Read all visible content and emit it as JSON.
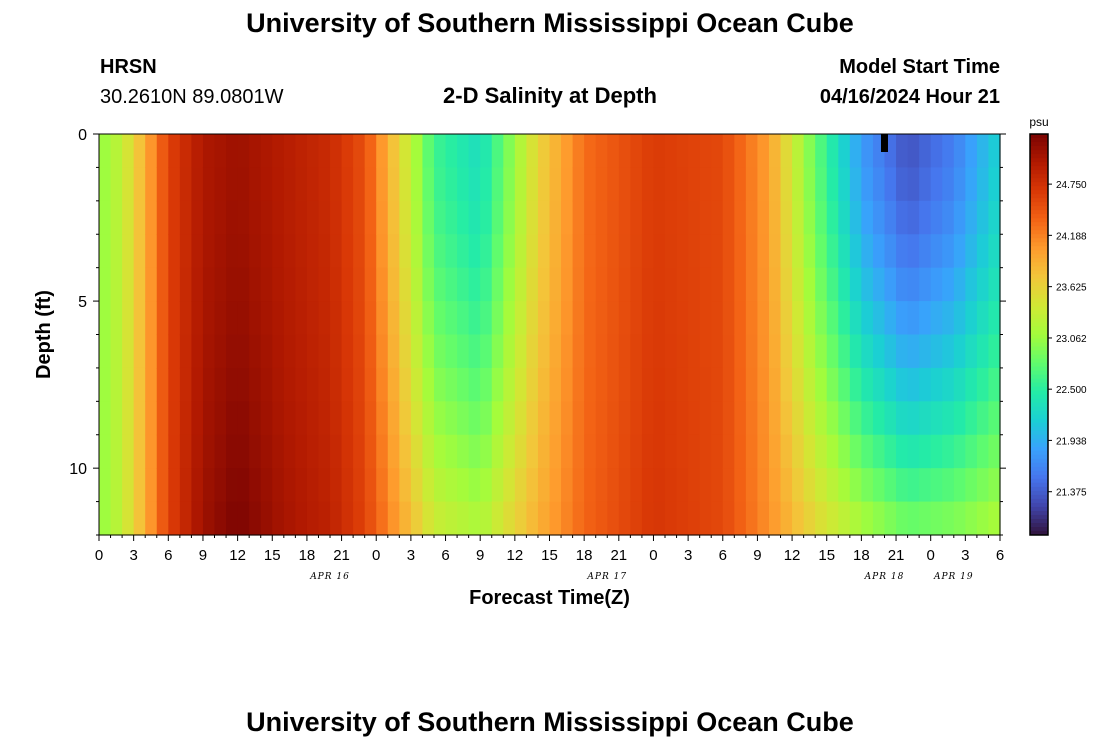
{
  "header": {
    "title": "University of Southern Mississippi Ocean Cube",
    "station_id": "HRSN",
    "station_coords": "30.2610N  89.0801W",
    "chart_title": "2-D Salinity at Depth",
    "start_label": "Model Start Time",
    "start_value": "04/16/2024 Hour 21"
  },
  "footer": {
    "title": "University of Southern Mississippi Ocean Cube"
  },
  "chart_data": {
    "type": "heatmap",
    "title": "2-D Salinity at Depth",
    "xlabel": "Forecast Time(Z)",
    "ylabel": "Depth (ft)",
    "x_tick_labels": [
      "0",
      "3",
      "6",
      "9",
      "12",
      "15",
      "18",
      "21",
      "0",
      "3",
      "6",
      "9",
      "12",
      "15",
      "18",
      "21",
      "0",
      "3",
      "6",
      "9",
      "12",
      "15",
      "18",
      "21",
      "0",
      "3",
      "6"
    ],
    "date_labels": [
      "APR 16",
      "APR 17",
      "APR 18",
      "APR 19"
    ],
    "x_range_hours_from_apr16_00z": [
      0,
      78
    ],
    "y_ticks": [
      0,
      5,
      10
    ],
    "y_range_ft": [
      0,
      12
    ],
    "colorbar": {
      "unit": "psu",
      "ticks": [
        "24.750",
        "24.188",
        "23.625",
        "23.062",
        "22.500",
        "21.938",
        "21.375"
      ],
      "range": [
        20.9,
        25.3
      ]
    },
    "surface_salinity_profile": [
      {
        "hour": 0,
        "psu": 23.0
      },
      {
        "hour": 2,
        "psu": 23.3
      },
      {
        "hour": 4,
        "psu": 23.9
      },
      {
        "hour": 6,
        "psu": 24.6
      },
      {
        "hour": 9,
        "psu": 25.0
      },
      {
        "hour": 12,
        "psu": 25.1
      },
      {
        "hour": 16,
        "psu": 24.95
      },
      {
        "hour": 20,
        "psu": 24.8
      },
      {
        "hour": 23,
        "psu": 24.5
      },
      {
        "hour": 26,
        "psu": 23.6
      },
      {
        "hour": 29,
        "psu": 22.6
      },
      {
        "hour": 33,
        "psu": 22.3
      },
      {
        "hour": 35,
        "psu": 22.8
      },
      {
        "hour": 38,
        "psu": 23.6
      },
      {
        "hour": 42,
        "psu": 24.3
      },
      {
        "hour": 48,
        "psu": 24.65
      },
      {
        "hour": 54,
        "psu": 24.55
      },
      {
        "hour": 58,
        "psu": 24.0
      },
      {
        "hour": 62,
        "psu": 22.8
      },
      {
        "hour": 66,
        "psu": 21.8
      },
      {
        "hour": 70,
        "psu": 21.3
      },
      {
        "hour": 74,
        "psu": 21.6
      },
      {
        "hour": 78,
        "psu": 22.2
      }
    ],
    "bottom_salinity_profile": [
      {
        "hour": 0,
        "psu": 23.0
      },
      {
        "hour": 2,
        "psu": 23.3
      },
      {
        "hour": 4,
        "psu": 23.9
      },
      {
        "hour": 6,
        "psu": 24.6
      },
      {
        "hour": 9,
        "psu": 25.1
      },
      {
        "hour": 12,
        "psu": 25.3
      },
      {
        "hour": 16,
        "psu": 25.05
      },
      {
        "hour": 20,
        "psu": 24.9
      },
      {
        "hour": 23,
        "psu": 24.6
      },
      {
        "hour": 26,
        "psu": 24.0
      },
      {
        "hour": 29,
        "psu": 23.4
      },
      {
        "hour": 33,
        "psu": 23.2
      },
      {
        "hour": 35,
        "psu": 23.5
      },
      {
        "hour": 38,
        "psu": 23.9
      },
      {
        "hour": 42,
        "psu": 24.35
      },
      {
        "hour": 48,
        "psu": 24.7
      },
      {
        "hour": 54,
        "psu": 24.55
      },
      {
        "hour": 58,
        "psu": 24.1
      },
      {
        "hour": 62,
        "psu": 23.6
      },
      {
        "hour": 66,
        "psu": 23.2
      },
      {
        "hour": 70,
        "psu": 22.9
      },
      {
        "hour": 74,
        "psu": 23.0
      },
      {
        "hour": 78,
        "psu": 23.2
      }
    ],
    "colorbar_colors": [
      "#30123b",
      "#4145ab",
      "#4675ed",
      "#39a2fc",
      "#1bcfd4",
      "#24eca6",
      "#61fc6c",
      "#a4fc3b",
      "#d1e834",
      "#f3c63a",
      "#fe9b2d",
      "#f36315",
      "#d93806",
      "#b11901",
      "#7a0402"
    ],
    "current_time_marker_hour": 68
  }
}
